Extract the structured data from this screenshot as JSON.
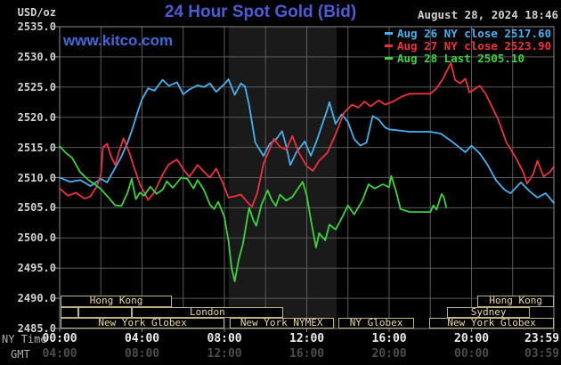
{
  "header": {
    "title": "24 Hour Spot Gold (Bid)",
    "datetime": "August 28, 2024 18:46",
    "watermark": "www.kitco.com"
  },
  "y_axis": {
    "label": "USD/oz"
  },
  "x_axis": {
    "ny_label": "NY Time",
    "gmt_label": "GMT"
  },
  "legend": {
    "items": [
      {
        "text": "Aug 26 NY close 2517.60",
        "color": "#46b1f0"
      },
      {
        "text": "Aug 27 NY close 2523.90",
        "color": "#f0303c"
      },
      {
        "text": "Aug 28 Last 2505.10",
        "color": "#3bd43b"
      }
    ]
  },
  "colors": {
    "background": "#000000",
    "band": "#1a1a1a",
    "grid": "#5a5a5a",
    "border": "#8c8c8c",
    "title": "#4a5cd6",
    "watermark": "#3f6bdc",
    "axis_text": "#d4d4d4",
    "ny_tick_text": "#ececec",
    "gmt_tick_text": "#4d4d4d",
    "axis_name_text": "#b0b0b0",
    "datetime_text": "#d0d0d0",
    "session_border": "#bdb284",
    "session_text": "#ecd9a2"
  },
  "sessions": {
    "rows": [
      [
        {
          "label": "Hong Kong",
          "start_h": 0.05,
          "end_h": 5.45
        },
        {
          "label": "Hong Kong",
          "start_h": 20.3,
          "end_h": 24
        }
      ],
      [
        {
          "label": "",
          "start_h": 0.05,
          "end_h": 0.9
        },
        {
          "label": "",
          "start_h": 0.9,
          "end_h": 3.5
        },
        {
          "label": "London",
          "start_h": 3.5,
          "end_h": 10.85
        },
        {
          "label": "Sydney",
          "start_h": 18.8,
          "end_h": 22.85
        }
      ],
      [
        {
          "label": "New York Globex",
          "start_h": 0.05,
          "end_h": 8.0
        },
        {
          "label": "New York NYMEX",
          "start_h": 8.25,
          "end_h": 13.3
        },
        {
          "label": "NY Globex",
          "start_h": 13.55,
          "end_h": 17.2
        },
        {
          "label": "New York Globex",
          "start_h": 17.95,
          "end_h": 24
        }
      ]
    ]
  },
  "chart_data": {
    "type": "line",
    "title": "24 Hour Spot Gold (Bid)",
    "ylabel": "USD/oz",
    "ylim": [
      2485,
      2535
    ],
    "xlim_hours": [
      0,
      24
    ],
    "grid": true,
    "legend_position": "top-right",
    "session_highlight": {
      "start_h": 8.2,
      "end_h": 13.45
    },
    "y_ticks": [
      "2535.0",
      "2530.0",
      "2525.0",
      "2520.0",
      "2515.0",
      "2510.0",
      "2505.0",
      "2500.0",
      "2495.0",
      "2490.0",
      "2485.0"
    ],
    "x_ticks": [
      {
        "h": 0,
        "ny": "00:00",
        "gmt": "04:00"
      },
      {
        "h": 4,
        "ny": "04:00",
        "gmt": "08:00"
      },
      {
        "h": 8,
        "ny": "08:00",
        "gmt": "12:00"
      },
      {
        "h": 12,
        "ny": "12:00",
        "gmt": "16:00"
      },
      {
        "h": 16,
        "ny": "16:00",
        "gmt": "20:00"
      },
      {
        "h": 20,
        "ny": "20:00",
        "gmt": "00:00"
      },
      {
        "h": 24,
        "ny": "23:59",
        "gmt": "03:59"
      }
    ],
    "series": [
      {
        "name": "Aug 26 NY close",
        "close": 2517.6,
        "color": "#46b1f0",
        "points": [
          [
            0,
            2510.0
          ],
          [
            0.5,
            2509.3
          ],
          [
            1,
            2509.6
          ],
          [
            1.5,
            2508.6
          ],
          [
            2,
            2509.8
          ],
          [
            2.3,
            2509.2
          ],
          [
            2.6,
            2511.0
          ],
          [
            3,
            2513.5
          ],
          [
            3.3,
            2515.8
          ],
          [
            3.5,
            2517.7
          ],
          [
            3.8,
            2521.0
          ],
          [
            4,
            2523.0
          ],
          [
            4.3,
            2524.8
          ],
          [
            4.6,
            2524.4
          ],
          [
            5,
            2526.2
          ],
          [
            5.3,
            2525.2
          ],
          [
            5.7,
            2525.8
          ],
          [
            6,
            2523.8
          ],
          [
            6.3,
            2524.6
          ],
          [
            6.7,
            2525.3
          ],
          [
            7,
            2525.0
          ],
          [
            7.3,
            2525.6
          ],
          [
            7.6,
            2524.2
          ],
          [
            8,
            2525.5
          ],
          [
            8.2,
            2526.3
          ],
          [
            8.5,
            2523.7
          ],
          [
            8.8,
            2525.6
          ],
          [
            9,
            2525.1
          ],
          [
            9.2,
            2522.0
          ],
          [
            9.5,
            2515.8
          ],
          [
            9.9,
            2513.6
          ],
          [
            10.2,
            2515.6
          ],
          [
            10.5,
            2516.3
          ],
          [
            10.8,
            2517.7
          ],
          [
            11,
            2515.2
          ],
          [
            11.2,
            2512.1
          ],
          [
            11.5,
            2514.2
          ],
          [
            11.9,
            2516.0
          ],
          [
            12.2,
            2513.6
          ],
          [
            12.5,
            2516.3
          ],
          [
            13,
            2521.3
          ],
          [
            13.1,
            2522.5
          ],
          [
            13.4,
            2518.9
          ],
          [
            13.7,
            2520.5
          ],
          [
            14,
            2519.2
          ],
          [
            14.3,
            2516.4
          ],
          [
            14.6,
            2515.3
          ],
          [
            14.9,
            2515.8
          ],
          [
            15.2,
            2520.2
          ],
          [
            15.5,
            2519.6
          ],
          [
            15.8,
            2518.3
          ],
          [
            16,
            2518.0
          ],
          [
            16.5,
            2517.8
          ],
          [
            17,
            2517.6
          ],
          [
            18,
            2517.6
          ],
          [
            18.5,
            2517.3
          ],
          [
            19,
            2516.1
          ],
          [
            19.3,
            2515.3
          ],
          [
            19.7,
            2514.2
          ],
          [
            20,
            2515.3
          ],
          [
            20.4,
            2514.0
          ],
          [
            20.8,
            2512.0
          ],
          [
            21.2,
            2509.5
          ],
          [
            21.6,
            2508.0
          ],
          [
            21.9,
            2507.4
          ],
          [
            22.4,
            2509.2
          ],
          [
            22.8,
            2507.8
          ],
          [
            23.2,
            2506.7
          ],
          [
            23.6,
            2507.4
          ],
          [
            24,
            2505.8
          ]
        ]
      },
      {
        "name": "Aug 27 NY close",
        "close": 2523.9,
        "color": "#f0303c",
        "points": [
          [
            0,
            2508.2
          ],
          [
            0.4,
            2507.0
          ],
          [
            0.8,
            2507.5
          ],
          [
            1.2,
            2506.5
          ],
          [
            1.5,
            2506.9
          ],
          [
            1.8,
            2508.5
          ],
          [
            2,
            2510.5
          ],
          [
            2.1,
            2515.0
          ],
          [
            2.3,
            2515.6
          ],
          [
            2.5,
            2513.5
          ],
          [
            2.7,
            2512.1
          ],
          [
            2.9,
            2514.5
          ],
          [
            3.1,
            2516.5
          ],
          [
            3.4,
            2514.0
          ],
          [
            3.6,
            2511.8
          ],
          [
            3.9,
            2508.9
          ],
          [
            4.3,
            2506.3
          ],
          [
            4.6,
            2507.6
          ],
          [
            5,
            2510.5
          ],
          [
            5.3,
            2512.2
          ],
          [
            5.7,
            2513.0
          ],
          [
            6,
            2511.4
          ],
          [
            6.3,
            2510.1
          ],
          [
            6.7,
            2512.1
          ],
          [
            7,
            2511.0
          ],
          [
            7.3,
            2510.0
          ],
          [
            7.6,
            2511.5
          ],
          [
            7.9,
            2509.3
          ],
          [
            8.2,
            2506.7
          ],
          [
            8.5,
            2506.9
          ],
          [
            8.8,
            2507.2
          ],
          [
            9.2,
            2505.6
          ],
          [
            9.35,
            2505.2
          ],
          [
            9.6,
            2507.5
          ],
          [
            9.9,
            2512.3
          ],
          [
            10.15,
            2514.3
          ],
          [
            10.4,
            2516.4
          ],
          [
            10.7,
            2515.1
          ],
          [
            11,
            2514.6
          ],
          [
            11.3,
            2516.9
          ],
          [
            11.6,
            2514.2
          ],
          [
            12,
            2511.9
          ],
          [
            12.3,
            2511.1
          ],
          [
            12.6,
            2512.8
          ],
          [
            13,
            2514.1
          ],
          [
            13.4,
            2517.2
          ],
          [
            13.8,
            2520.7
          ],
          [
            14.2,
            2522.1
          ],
          [
            14.5,
            2521.6
          ],
          [
            14.8,
            2522.6
          ],
          [
            15.1,
            2521.8
          ],
          [
            15.5,
            2522.8
          ],
          [
            15.8,
            2522.1
          ],
          [
            16.2,
            2522.6
          ],
          [
            16.6,
            2523.4
          ],
          [
            17,
            2523.9
          ],
          [
            18,
            2523.9
          ],
          [
            18.3,
            2524.8
          ],
          [
            18.6,
            2526.3
          ],
          [
            19,
            2529.0
          ],
          [
            19.2,
            2526.2
          ],
          [
            19.45,
            2525.6
          ],
          [
            19.7,
            2526.4
          ],
          [
            19.9,
            2524.1
          ],
          [
            20.4,
            2525.2
          ],
          [
            20.7,
            2523.8
          ],
          [
            21,
            2521.7
          ],
          [
            21.3,
            2519.6
          ],
          [
            21.7,
            2515.8
          ],
          [
            22.1,
            2513.6
          ],
          [
            22.5,
            2511.0
          ],
          [
            22.7,
            2509.0
          ],
          [
            23,
            2510.6
          ],
          [
            23.2,
            2512.8
          ],
          [
            23.5,
            2510.2
          ],
          [
            23.8,
            2510.9
          ],
          [
            24,
            2511.8
          ]
        ]
      },
      {
        "name": "Aug 28 Last",
        "last": 2505.1,
        "color": "#3bd43b",
        "points": [
          [
            0,
            2515.2
          ],
          [
            0.3,
            2514.1
          ],
          [
            0.6,
            2513.3
          ],
          [
            1,
            2510.9
          ],
          [
            1.4,
            2509.6
          ],
          [
            1.7,
            2508.9
          ],
          [
            2,
            2508.1
          ],
          [
            2.4,
            2506.6
          ],
          [
            2.7,
            2505.4
          ],
          [
            3,
            2505.3
          ],
          [
            3.3,
            2507.5
          ],
          [
            3.5,
            2509.8
          ],
          [
            3.7,
            2506.4
          ],
          [
            3.9,
            2507.5
          ],
          [
            4.1,
            2507.0
          ],
          [
            4.4,
            2508.5
          ],
          [
            4.7,
            2507.3
          ],
          [
            5,
            2508.0
          ],
          [
            5.2,
            2509.4
          ],
          [
            5.5,
            2508.3
          ],
          [
            5.9,
            2510.0
          ],
          [
            6.2,
            2509.8
          ],
          [
            6.5,
            2508.2
          ],
          [
            6.7,
            2509.6
          ],
          [
            7,
            2508.0
          ],
          [
            7.3,
            2505.5
          ],
          [
            7.5,
            2504.8
          ],
          [
            7.7,
            2506.0
          ],
          [
            8,
            2503.5
          ],
          [
            8.2,
            2499.5
          ],
          [
            8.35,
            2495.0
          ],
          [
            8.5,
            2492.8
          ],
          [
            8.7,
            2496.5
          ],
          [
            8.9,
            2499.0
          ],
          [
            9.1,
            2503.0
          ],
          [
            9.2,
            2505.0
          ],
          [
            9.4,
            2503.0
          ],
          [
            9.55,
            2502.0
          ],
          [
            9.8,
            2505.5
          ],
          [
            10.1,
            2507.9
          ],
          [
            10.3,
            2506.3
          ],
          [
            10.5,
            2505.3
          ],
          [
            10.7,
            2507.2
          ],
          [
            11,
            2506.2
          ],
          [
            11.3,
            2506.8
          ],
          [
            11.5,
            2507.8
          ],
          [
            11.8,
            2509.3
          ],
          [
            12,
            2507.0
          ],
          [
            12.2,
            2503.0
          ],
          [
            12.45,
            2498.4
          ],
          [
            12.6,
            2500.8
          ],
          [
            12.9,
            2499.6
          ],
          [
            13.1,
            2502.2
          ],
          [
            13.4,
            2501.4
          ],
          [
            13.7,
            2503.3
          ],
          [
            14,
            2505.4
          ],
          [
            14.3,
            2503.9
          ],
          [
            14.7,
            2506.2
          ],
          [
            15,
            2508.9
          ],
          [
            15.3,
            2508.2
          ],
          [
            15.7,
            2508.9
          ],
          [
            16,
            2508.4
          ],
          [
            16.1,
            2510.3
          ],
          [
            16.35,
            2507.6
          ],
          [
            16.55,
            2504.8
          ],
          [
            17,
            2504.3
          ],
          [
            18,
            2504.3
          ],
          [
            18.15,
            2505.4
          ],
          [
            18.3,
            2504.7
          ],
          [
            18.55,
            2507.3
          ],
          [
            18.65,
            2506.8
          ],
          [
            18.77,
            2505.1
          ]
        ]
      }
    ]
  }
}
